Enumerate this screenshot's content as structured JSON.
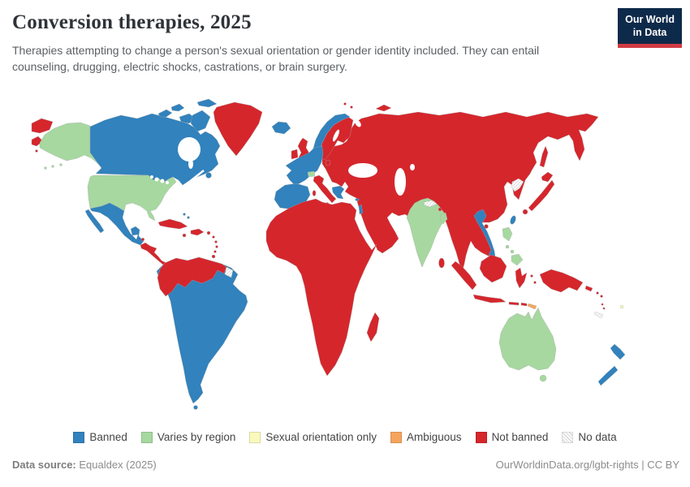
{
  "header": {
    "title": "Conversion therapies, 2025",
    "subtitle": "Therapies attempting to change a person's sexual orientation or gender identity included. They can entail counseling, drugging, electric shocks, castrations, or brain surgery."
  },
  "logo": {
    "line1": "Our World",
    "line2": "in Data",
    "bg_color": "#0e2a4a",
    "accent_color": "#d03b43"
  },
  "legend": {
    "items": [
      {
        "key": "banned",
        "label": "Banned",
        "color": "#3182bd"
      },
      {
        "key": "varies",
        "label": "Varies by region",
        "color": "#a6d8a0"
      },
      {
        "key": "so_only",
        "label": "Sexual orientation only",
        "color": "#f9f9bb"
      },
      {
        "key": "ambiguous",
        "label": "Ambiguous",
        "color": "#f5a45e"
      },
      {
        "key": "not_banned",
        "label": "Not banned",
        "color": "#d5262c"
      },
      {
        "key": "no_data",
        "label": "No data",
        "color": "hatch"
      }
    ]
  },
  "chart_data": {
    "type": "choropleth",
    "title": "Conversion therapies, 2025",
    "categories": [
      "Banned",
      "Varies by region",
      "Sexual orientation only",
      "Ambiguous",
      "Not banned",
      "No data"
    ],
    "legend_position": "bottom",
    "regions": {
      "Banned": [
        "Canada",
        "Mexico",
        "Brazil",
        "Ecuador",
        "Peru",
        "Bolivia",
        "Chile",
        "Argentina",
        "Paraguay",
        "Uruguay",
        "French Guiana",
        "Iceland",
        "Norway",
        "France",
        "Spain",
        "Portugal",
        "Germany",
        "Belgium",
        "Greece",
        "Malta",
        "Cyprus",
        "Israel",
        "Vietnam",
        "Taiwan",
        "New Zealand"
      ],
      "Varies by region": [
        "United States",
        "Alaska",
        "Switzerland",
        "India",
        "Bangladesh",
        "Philippines",
        "Australia"
      ],
      "Sexual orientation only": [
        "Fiji"
      ],
      "Ambiguous": [
        "Timor-Leste"
      ],
      "Not banned": [
        "Greenland",
        "Cuba",
        "Caribbean islands",
        "Central America",
        "Colombia",
        "Venezuela",
        "Guyana",
        "United Kingdom",
        "Ireland",
        "Sweden",
        "Finland",
        "Denmark",
        "Italy",
        "Russia",
        "Eastern Europe",
        "Turkey",
        "Middle East",
        "Central Asia",
        "Africa",
        "Madagascar",
        "China",
        "Mongolia",
        "Japan",
        "South Korea",
        "Sri Lanka",
        "Bhutan",
        "Myanmar",
        "Thailand",
        "Cambodia",
        "Indonesia",
        "Malaysia",
        "Papua New Guinea",
        "Solomon Islands"
      ],
      "No data": [
        "Suriname",
        "Nepal",
        "North Korea",
        "New Caledonia"
      ]
    }
  },
  "map": {
    "countries": [
      {
        "id": "chukotka",
        "status": "not_banned"
      },
      {
        "id": "alaska",
        "status": "varies"
      },
      {
        "id": "aleutians",
        "status": "varies"
      },
      {
        "id": "canada",
        "status": "banned"
      },
      {
        "id": "arctic-islands",
        "status": "banned"
      },
      {
        "id": "baffin",
        "status": "banned"
      },
      {
        "id": "newfoundland",
        "status": "banned"
      },
      {
        "id": "greenland",
        "status": "not_banned"
      },
      {
        "id": "usa",
        "status": "varies"
      },
      {
        "id": "mexico",
        "status": "banned"
      },
      {
        "id": "bahamas",
        "status": "banned"
      },
      {
        "id": "belize",
        "status": "not_banned"
      },
      {
        "id": "central-america",
        "status": "not_banned"
      },
      {
        "id": "cuba",
        "status": "not_banned"
      },
      {
        "id": "hispaniola",
        "status": "not_banned"
      },
      {
        "id": "jamaica",
        "status": "not_banned"
      },
      {
        "id": "puerto-rico",
        "status": "not_banned"
      },
      {
        "id": "lesser-antilles",
        "status": "not_banned"
      },
      {
        "id": "south-america",
        "status": "banned"
      },
      {
        "id": "northern-south-america",
        "status": "not_banned"
      },
      {
        "id": "suriname",
        "status": "no_data"
      },
      {
        "id": "iceland",
        "status": "banned"
      },
      {
        "id": "uk",
        "status": "not_banned"
      },
      {
        "id": "ireland",
        "status": "not_banned"
      },
      {
        "id": "norway",
        "status": "banned"
      },
      {
        "id": "sweden-finland",
        "status": "not_banned"
      },
      {
        "id": "denmark",
        "status": "not_banned"
      },
      {
        "id": "western-europe",
        "status": "banned"
      },
      {
        "id": "switzerland",
        "status": "varies"
      },
      {
        "id": "italy",
        "status": "not_banned"
      },
      {
        "id": "greece",
        "status": "banned"
      },
      {
        "id": "malta",
        "status": "banned"
      },
      {
        "id": "cyprus",
        "status": "banned"
      },
      {
        "id": "israel",
        "status": "banned"
      },
      {
        "id": "eurasia",
        "status": "not_banned"
      },
      {
        "id": "svalbard",
        "status": "not_banned"
      },
      {
        "id": "novaya-zemlya",
        "status": "not_banned"
      },
      {
        "id": "sakhalin",
        "status": "not_banned"
      },
      {
        "id": "japan",
        "status": "not_banned"
      },
      {
        "id": "north-korea",
        "status": "no_data"
      },
      {
        "id": "taiwan",
        "status": "banned"
      },
      {
        "id": "hainan",
        "status": "not_banned"
      },
      {
        "id": "vietnam",
        "status": "banned"
      },
      {
        "id": "india",
        "status": "varies"
      },
      {
        "id": "nepal",
        "status": "no_data"
      },
      {
        "id": "bhutan",
        "status": "not_banned"
      },
      {
        "id": "bangladesh",
        "status": "varies"
      },
      {
        "id": "sri-lanka",
        "status": "not_banned"
      },
      {
        "id": "philippines",
        "status": "varies"
      },
      {
        "id": "borneo",
        "status": "not_banned"
      },
      {
        "id": "sumatra",
        "status": "not_banned"
      },
      {
        "id": "java",
        "status": "not_banned"
      },
      {
        "id": "sulawesi",
        "status": "not_banned"
      },
      {
        "id": "moluccas",
        "status": "not_banned"
      },
      {
        "id": "lesser-sunda",
        "status": "not_banned"
      },
      {
        "id": "timor-leste",
        "status": "ambiguous"
      },
      {
        "id": "new-guinea",
        "status": "not_banned"
      },
      {
        "id": "solomon-islands",
        "status": "not_banned"
      },
      {
        "id": "vanuatu",
        "status": "not_banned"
      },
      {
        "id": "fiji",
        "status": "so_only"
      },
      {
        "id": "new-caledonia",
        "status": "no_data"
      },
      {
        "id": "australia",
        "status": "varies"
      },
      {
        "id": "tasmania",
        "status": "varies"
      },
      {
        "id": "new-zealand",
        "status": "banned"
      },
      {
        "id": "africa",
        "status": "not_banned"
      },
      {
        "id": "madagascar",
        "status": "not_banned"
      }
    ]
  },
  "footer": {
    "source_label": "Data source:",
    "source_text": " Equaldex (2025)",
    "credit": "OurWorldinData.org/lgbt-rights | CC BY"
  }
}
